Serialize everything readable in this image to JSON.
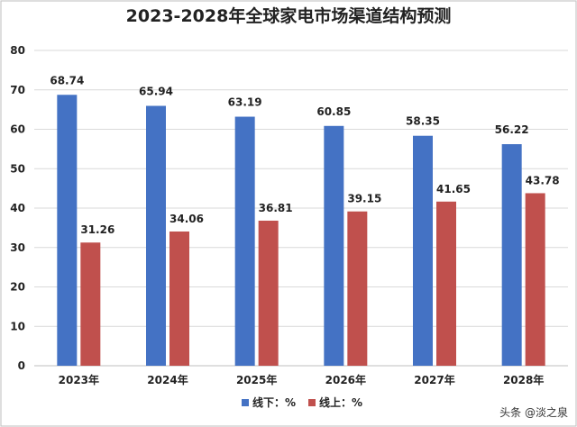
{
  "chart_data": {
    "type": "bar",
    "title": "2023-2028年全球家电市场渠道结构预测",
    "categories": [
      "2023年",
      "2024年",
      "2025年",
      "2026年",
      "2027年",
      "2028年"
    ],
    "series": [
      {
        "name": "线下：%",
        "color": "#4472C4",
        "values": [
          68.74,
          65.94,
          63.19,
          60.85,
          58.35,
          56.22
        ]
      },
      {
        "name": "线上：%",
        "color": "#C0504D",
        "values": [
          31.26,
          34.06,
          36.81,
          39.15,
          41.65,
          43.78
        ]
      }
    ],
    "ylim": [
      0,
      80
    ],
    "yticks": [
      0,
      10,
      20,
      30,
      40,
      50,
      60,
      70,
      80
    ],
    "grid": true,
    "legend": "bottom-center"
  },
  "watermark": "头条 @淡之泉"
}
